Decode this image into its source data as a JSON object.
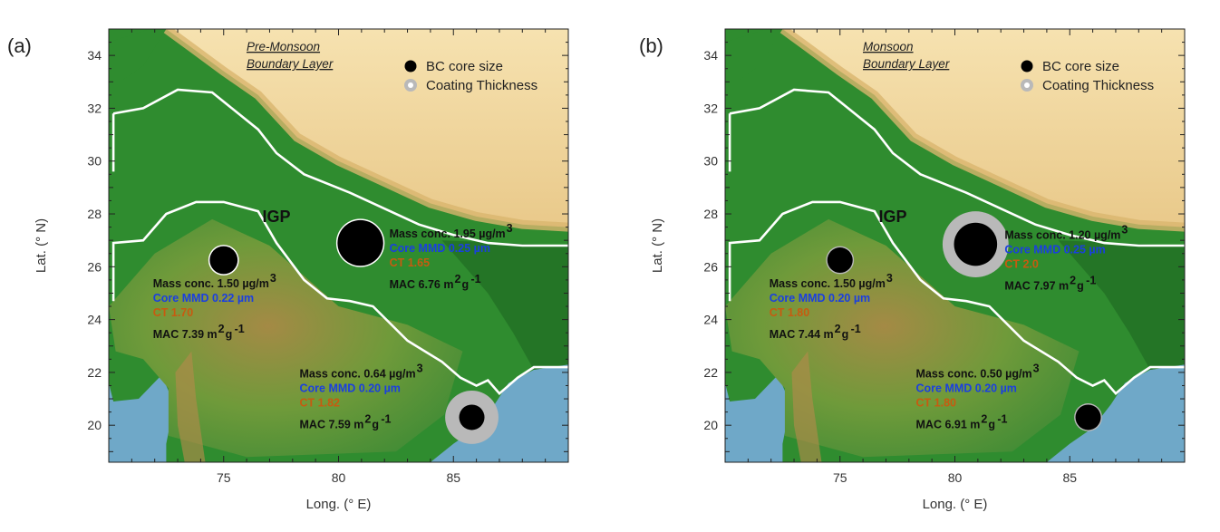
{
  "panels": [
    {
      "tag": "(a)",
      "title_lines": [
        "Pre-Monsoon",
        "Boundary Layer"
      ],
      "region_label": "IGP",
      "xlabel": "Long. (° E)",
      "ylabel": "Lat. (° N)",
      "xticks": [
        75,
        80,
        85
      ],
      "yticks": [
        20,
        22,
        24,
        26,
        28,
        30,
        32,
        34
      ],
      "legend": {
        "core": "BC core size",
        "coating": "Coating Thickness"
      },
      "sites": [
        {
          "lon": 75.0,
          "lat": 26.25,
          "core_size": 0.22,
          "coating_size": 0.22,
          "lines": [
            "Mass conc. 1.50 µg/m",
            "Core MMD 0.22 µm",
            "CT 1.70",
            "MAC 7.39 m",
            "g"
          ]
        },
        {
          "lon": 80.95,
          "lat": 26.9,
          "core_size": 0.36,
          "coating_size": 0.36,
          "lines": [
            "Mass conc. 1.95 µg/m",
            "Core MMD 0.25 µm",
            "CT 1.65",
            "MAC 6.76 m",
            "g"
          ]
        },
        {
          "lon": 85.8,
          "lat": 20.3,
          "core_size": 0.2,
          "coating_size": 0.42,
          "lines": [
            "Mass conc. 0.64 µg/m",
            "Core MMD 0.20 µm",
            "CT 1.82",
            "MAC 7.59 m",
            "g"
          ]
        }
      ]
    },
    {
      "tag": "(b)",
      "title_lines": [
        "Monsoon",
        "Boundary Layer"
      ],
      "region_label": "IGP",
      "xlabel": "Long. (° E)",
      "ylabel": "Lat. (° N)",
      "xticks": [
        75,
        80,
        85
      ],
      "yticks": [
        20,
        22,
        24,
        26,
        28,
        30,
        32,
        34
      ],
      "legend": {
        "core": "BC core size",
        "coating": "Coating Thickness"
      },
      "sites": [
        {
          "lon": 75.0,
          "lat": 26.25,
          "core_size": 0.2,
          "coating_size": 0.22,
          "lines": [
            "Mass conc. 1.50 µg/m",
            "Core MMD 0.20 µm",
            "CT 1.80",
            "MAC 7.44 m",
            "g"
          ]
        },
        {
          "lon": 80.9,
          "lat": 26.85,
          "core_size": 0.34,
          "coating_size": 0.52,
          "lines": [
            "Mass conc. 1.20 µg/m",
            "Core MMD 0.25 µm",
            "CT 2.0",
            "MAC 7.97 m",
            "g"
          ]
        },
        {
          "lon": 85.8,
          "lat": 20.3,
          "core_size": 0.2,
          "coating_size": 0.22,
          "lines": [
            "Mass conc. 0.50 µg/m",
            "Core MMD 0.20 µm",
            "CT 1.80",
            "MAC 6.91 m",
            "g"
          ]
        }
      ]
    }
  ],
  "map_extent": {
    "lon": [
      70,
      90
    ],
    "lat": [
      18.6,
      35
    ]
  },
  "colors": {
    "ocean": "#6fa8c8",
    "plain": "#2f8c2f",
    "plain_dark": "#1f6b22",
    "plateau": "#7aa03a",
    "highland": "#f2d9a0",
    "mountain": "#d9b56e",
    "boundary": "#ffffff",
    "mass_text": "#111111",
    "core_text": "#1a3fe0",
    "ct_text": "#c85a10",
    "core_fill": "#000000",
    "coating_fill": "#b9b9b9"
  },
  "superscripts": {
    "cubic": "3",
    "square": "2",
    "inverse": "-1"
  }
}
